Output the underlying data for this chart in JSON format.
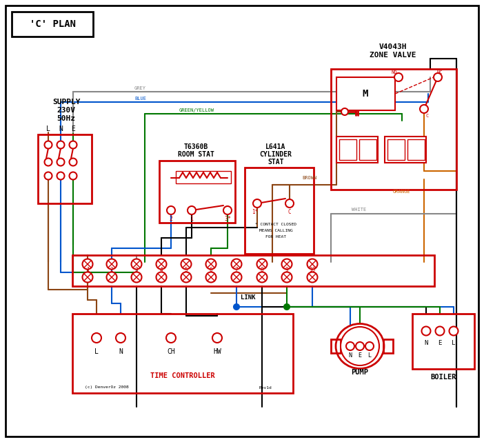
{
  "title": "'C' PLAN",
  "background": "#ffffff",
  "red": "#cc0000",
  "blue": "#0055cc",
  "green": "#007700",
  "grey": "#888888",
  "brown": "#8B4513",
  "orange": "#cc6600",
  "black": "#000000",
  "fig_w": 7.02,
  "fig_h": 6.41,
  "supply_text": [
    "SUPPLY",
    "230V",
    "50Hz"
  ],
  "v4043h_text": [
    "V4043H",
    "ZONE VALVE"
  ],
  "roomstat_text": [
    "T6360B",
    "ROOM STAT"
  ],
  "cylstat_text": [
    "L641A",
    "CYLINDER",
    "STAT"
  ],
  "tc_text": "TIME CONTROLLER",
  "pump_text": "PUMP",
  "boiler_text": "BOILER",
  "link_text": "LINK",
  "grey_label": "GREY",
  "blue_label": "BLUE",
  "gy_label": "GREEN/YELLOW",
  "brown_label": "BROWN",
  "white_label": "WHITE",
  "orange_label": "ORANGE",
  "copyright": "(c) DenverOz 2008",
  "revid": "Rev1d"
}
